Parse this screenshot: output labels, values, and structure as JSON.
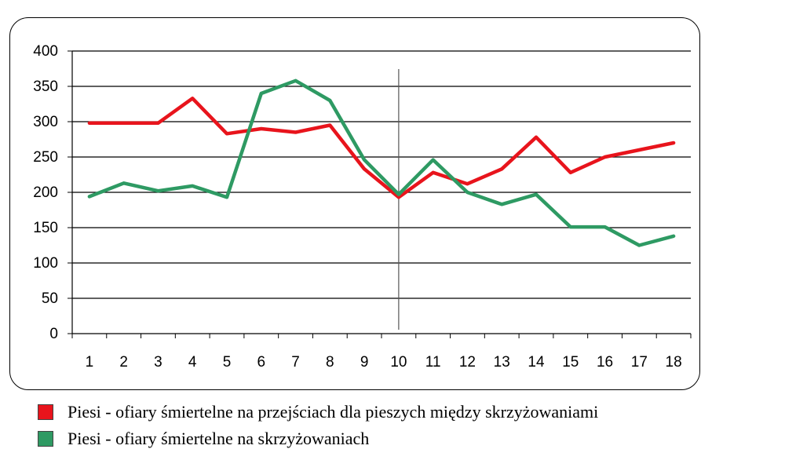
{
  "chart_data": {
    "type": "line",
    "x": [
      1,
      2,
      3,
      4,
      5,
      6,
      7,
      8,
      9,
      10,
      11,
      12,
      13,
      14,
      15,
      16,
      17,
      18
    ],
    "ylim": [
      0,
      400
    ],
    "yticks": [
      0,
      50,
      100,
      150,
      200,
      250,
      300,
      350,
      400
    ],
    "grid": true,
    "vertical_marker_x": 10,
    "legend_position": "bottom",
    "series": [
      {
        "name": "Piesi - ofiary śmiertelne na przejściach  dla pieszych między skrzyżowaniami",
        "color": "#e8141c",
        "values": [
          298,
          298,
          298,
          333,
          283,
          290,
          285,
          295,
          233,
          193,
          228,
          212,
          233,
          278,
          228,
          250,
          260,
          270
        ]
      },
      {
        "name": "Piesi - ofiary śmiertelne na skrzyżowaniach",
        "color": "#2e9a63",
        "values": [
          194,
          213,
          202,
          209,
          193,
          340,
          358,
          330,
          246,
          197,
          246,
          200,
          183,
          197,
          151,
          151,
          125,
          138
        ]
      }
    ]
  }
}
